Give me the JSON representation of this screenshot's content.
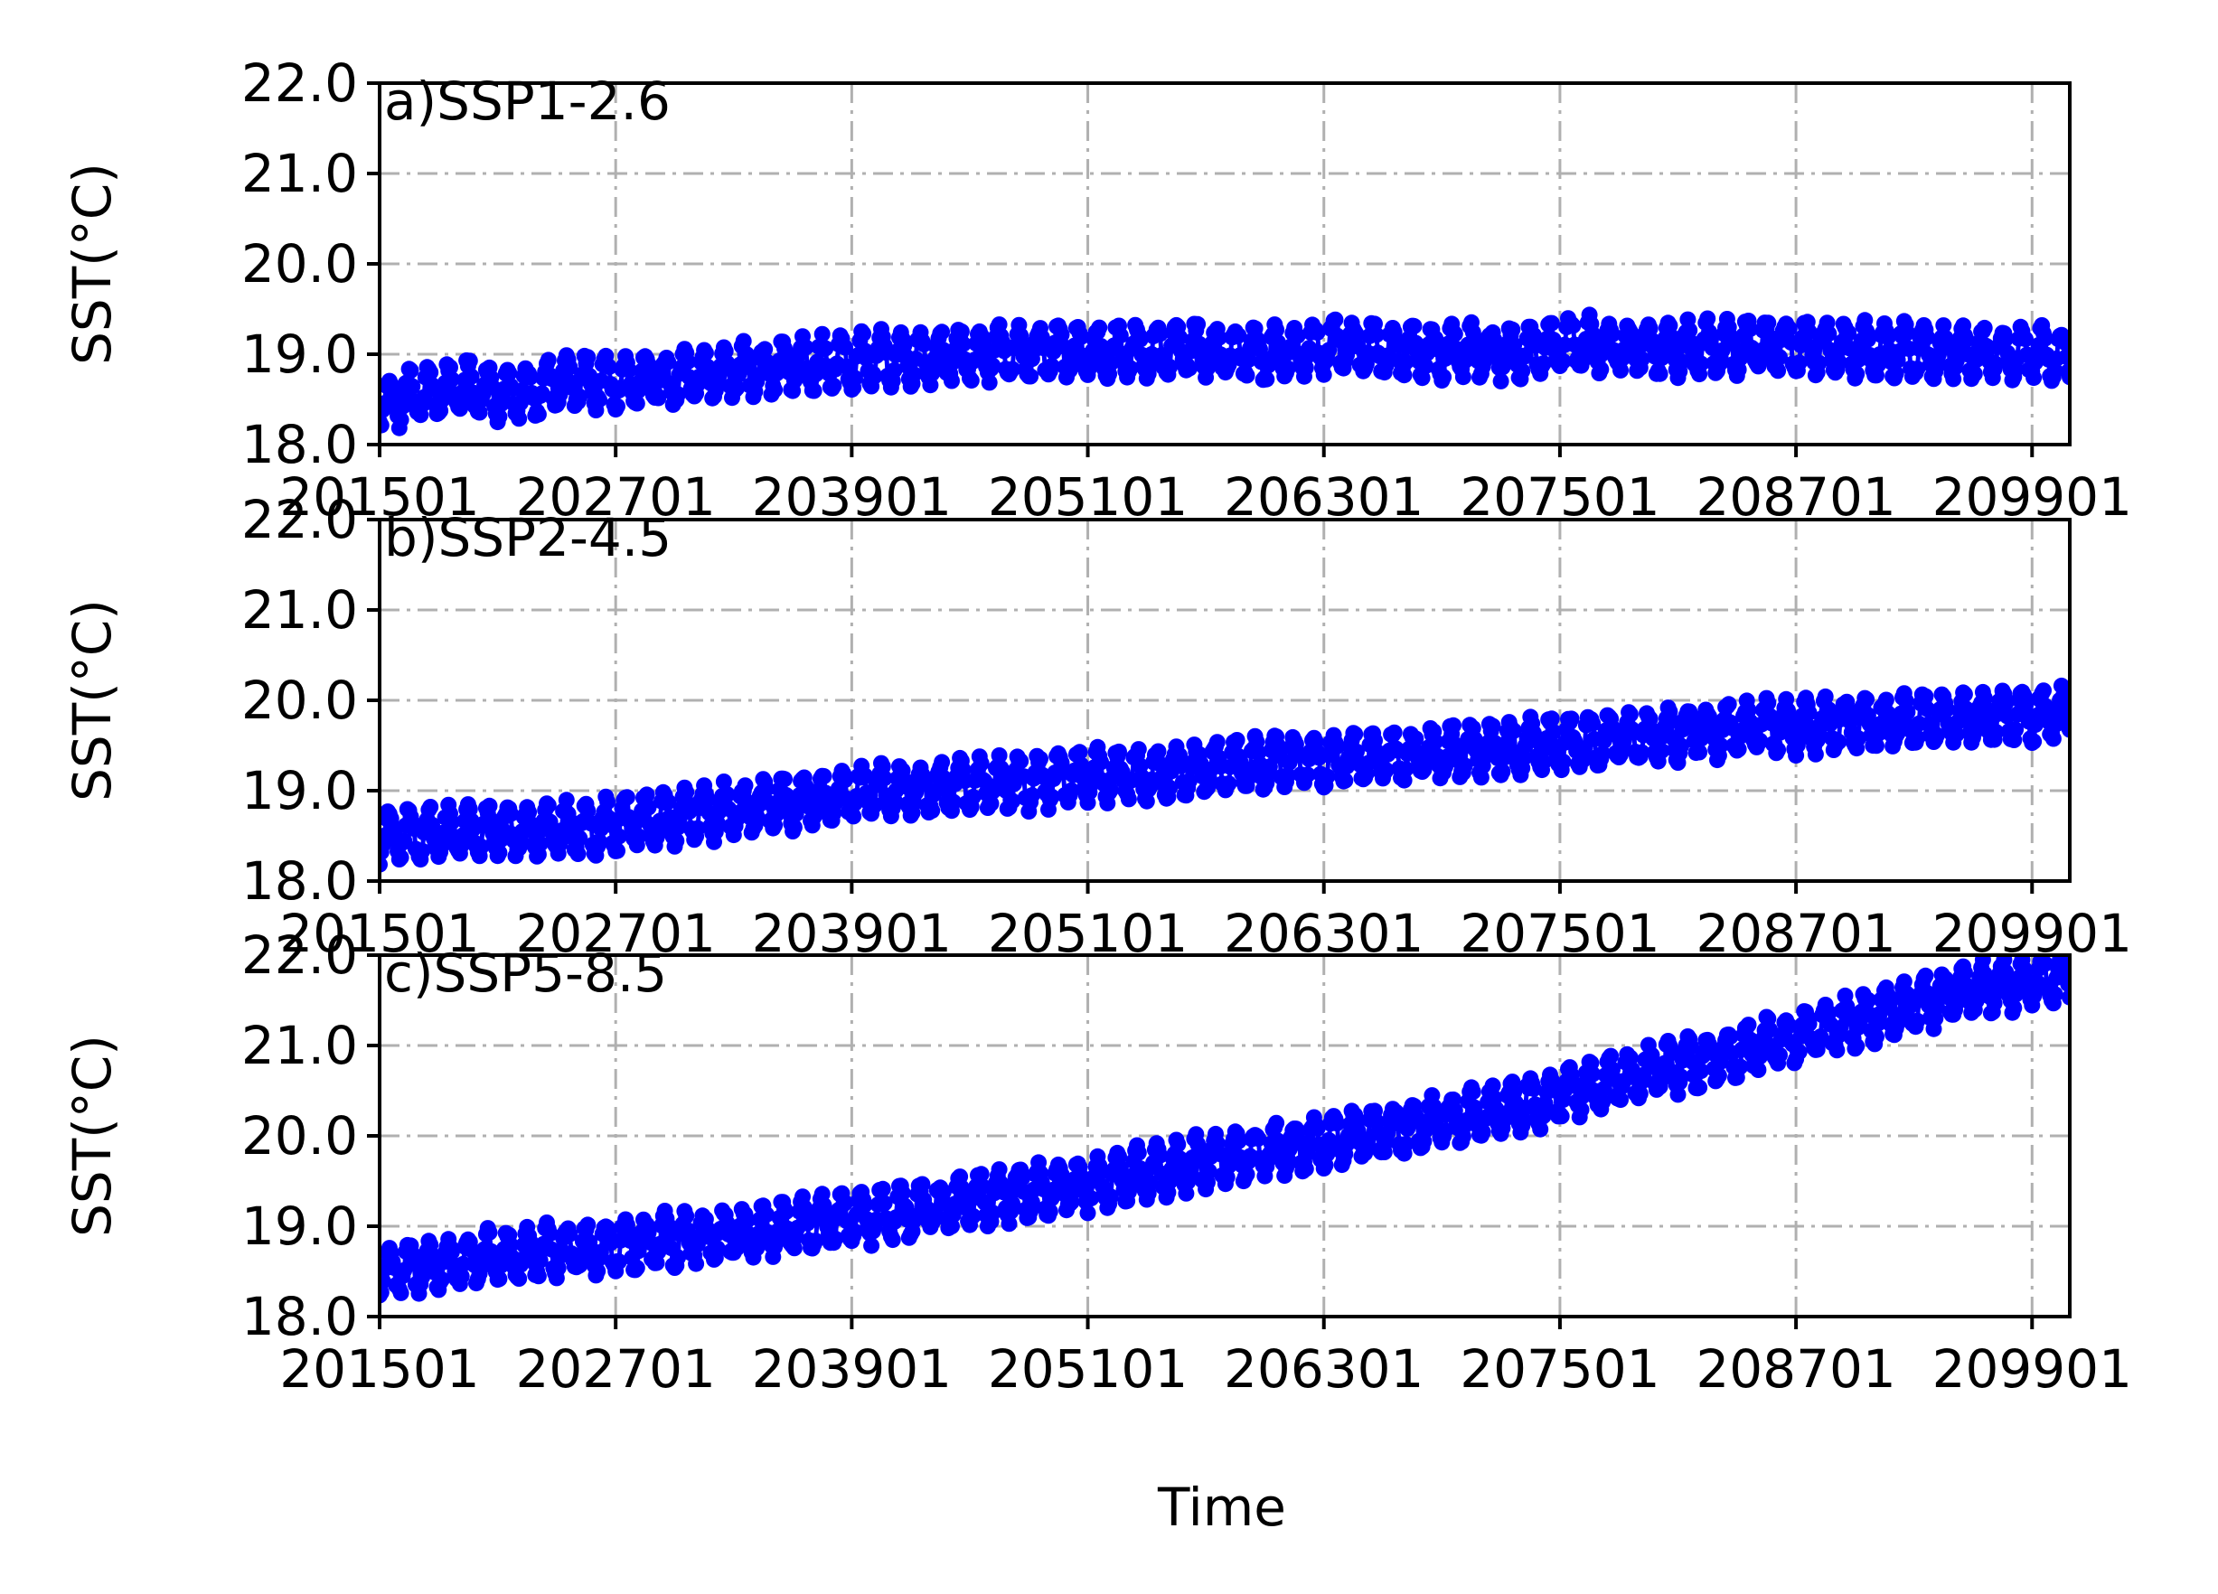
{
  "figure": {
    "xlabel": "Time",
    "ylabel": "SST(°C)",
    "colors": {
      "series": "#0000ff",
      "grid": "#b0b0b0",
      "axes": "#000000"
    }
  },
  "chart_data": [
    {
      "type": "line",
      "panel_label": "a)SSP1-2.6",
      "ylabel": "SST(°C)",
      "xlabel": "",
      "ylim": [
        18.0,
        22.0
      ],
      "yticks": [
        "18.0",
        "19.0",
        "20.0",
        "21.0",
        "22.0"
      ],
      "xticks": [
        "201501",
        "202701",
        "203901",
        "205101",
        "206301",
        "207501",
        "208701",
        "209901"
      ],
      "xtick_months": [
        0,
        144,
        288,
        432,
        576,
        720,
        864,
        1008
      ],
      "x_start": "2015-01",
      "x_end": "2100-12",
      "grid": true,
      "marker": "dot",
      "series": [
        {
          "annual_mean_by_year": {
            "years": [
              2015,
              2017,
              2019,
              2021,
              2024,
              2027,
              2030,
              2033,
              2036,
              2040,
              2045,
              2050,
              2055,
              2060,
              2063,
              2067,
              2072,
              2075,
              2080,
              2085,
              2090,
              2095,
              2100
            ],
            "values": [
              18.48,
              18.58,
              18.64,
              18.54,
              18.7,
              18.68,
              18.74,
              18.82,
              18.88,
              18.95,
              19.0,
              19.02,
              19.05,
              19.0,
              19.1,
              19.03,
              19.02,
              19.12,
              19.05,
              19.1,
              19.05,
              19.02,
              19.0
            ]
          },
          "seasonal_amplitude": 0.26,
          "noise": 0.07
        }
      ]
    },
    {
      "type": "line",
      "panel_label": "b)SSP2-4.5",
      "ylabel": "SST(°C)",
      "xlabel": "",
      "ylim": [
        18.0,
        22.0
      ],
      "yticks": [
        "18.0",
        "19.0",
        "20.0",
        "21.0",
        "22.0"
      ],
      "xticks": [
        "201501",
        "202701",
        "203901",
        "205101",
        "206301",
        "207501",
        "208701",
        "209901"
      ],
      "xtick_months": [
        0,
        144,
        288,
        432,
        576,
        720,
        864,
        1008
      ],
      "x_start": "2015-01",
      "x_end": "2100-12",
      "grid": true,
      "marker": "dot",
      "series": [
        {
          "annual_mean_by_year": {
            "years": [
              2015,
              2020,
              2025,
              2030,
              2035,
              2040,
              2045,
              2050,
              2055,
              2060,
              2065,
              2070,
              2075,
              2080,
              2085,
              2090,
              2095,
              2100
            ],
            "values": [
              18.5,
              18.56,
              18.58,
              18.72,
              18.85,
              19.0,
              19.05,
              19.15,
              19.2,
              19.32,
              19.36,
              19.45,
              19.52,
              19.62,
              19.7,
              19.75,
              19.8,
              19.84
            ]
          },
          "seasonal_amplitude": 0.26,
          "noise": 0.07
        }
      ]
    },
    {
      "type": "line",
      "panel_label": "c)SSP5-8.5",
      "ylabel": "SST(°C)",
      "xlabel": "Time",
      "ylim": [
        18.0,
        22.0
      ],
      "yticks": [
        "18.0",
        "19.0",
        "20.0",
        "21.0",
        "22.0"
      ],
      "xticks": [
        "201501",
        "202701",
        "203901",
        "205101",
        "206301",
        "207501",
        "208701",
        "209901"
      ],
      "xtick_months": [
        0,
        144,
        288,
        432,
        576,
        720,
        864,
        1008
      ],
      "x_start": "2015-01",
      "x_end": "2100-12",
      "grid": true,
      "marker": "dot",
      "series": [
        {
          "annual_mean_by_year": {
            "years": [
              2015,
              2020,
              2025,
              2030,
              2035,
              2040,
              2045,
              2050,
              2055,
              2060,
              2065,
              2070,
              2075,
              2080,
              2085,
              2090,
              2095,
              2100
            ],
            "values": [
              18.5,
              18.65,
              18.76,
              18.86,
              18.98,
              19.12,
              19.28,
              19.45,
              19.65,
              19.85,
              20.02,
              20.22,
              20.48,
              20.75,
              21.0,
              21.3,
              21.6,
              21.75
            ]
          },
          "seasonal_amplitude": 0.26,
          "noise": 0.07
        }
      ]
    }
  ]
}
